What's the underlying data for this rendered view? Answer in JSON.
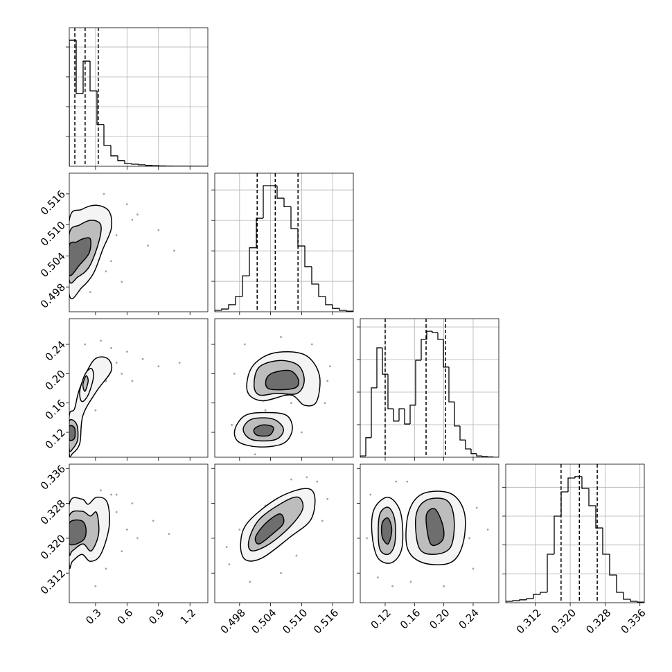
{
  "chart_data": {
    "type": "corner",
    "axes": [
      {
        "lim": [
          0.05,
          1.37
        ],
        "ticks": [
          0.3,
          0.6,
          0.9,
          1.2
        ]
      },
      {
        "lim": [
          0.4932,
          0.52
        ],
        "ticks": [
          0.498,
          0.504,
          {
            "value": 0.51,
            "label": "0.510"
          },
          0.516
        ]
      },
      {
        "lim": [
          0.086,
          0.275
        ],
        "ticks": [
          0.12,
          0.16,
          {
            "value": 0.2,
            "label": "0.20"
          },
          0.24
        ]
      },
      {
        "lim": [
          0.3052,
          0.337
        ],
        "ticks": [
          0.312,
          {
            "value": 0.32,
            "label": "0.320"
          },
          0.328,
          0.336
        ]
      }
    ],
    "grid": true,
    "histograms": [
      {
        "bins": [
          0.05,
          0.116,
          0.182,
          0.248,
          0.314,
          0.38,
          0.446,
          0.512,
          0.578,
          0.644,
          0.71,
          0.776,
          0.842,
          0.908,
          0.974,
          1.04,
          1.106,
          1.172,
          1.238,
          1.304,
          1.37
        ],
        "counts": [
          4230,
          2440,
          3530,
          2530,
          1400,
          700,
          350,
          190,
          90,
          70,
          50,
          30,
          20,
          10,
          5,
          3,
          2,
          1,
          1,
          0
        ],
        "ylim": [
          0,
          4650
        ],
        "yticks": [
          1000,
          2000,
          3000,
          4000
        ],
        "quantiles": [
          0.103,
          0.201,
          0.326
        ]
      },
      {
        "bins": [
          0.4932,
          0.49454,
          0.49588,
          0.49722,
          0.49856,
          0.4999,
          0.50124,
          0.50258,
          0.50392,
          0.50526,
          0.5066,
          0.50794,
          0.50928,
          0.51062,
          0.51196,
          0.5133,
          0.51464,
          0.51598,
          0.51732,
          0.51866,
          0.52
        ],
        "counts": [
          45,
          90,
          230,
          500,
          1180,
          2100,
          3070,
          4140,
          4140,
          3730,
          3450,
          2730,
          2160,
          1480,
          910,
          500,
          230,
          110,
          45,
          20
        ],
        "ylim": [
          0,
          4550
        ],
        "yticks": [
          1000,
          2000,
          3000,
          4000
        ],
        "quantiles": [
          0.5014,
          0.5049,
          0.5093
        ]
      },
      {
        "bins": [
          0.086,
          0.09356,
          0.10112,
          0.10868,
          0.11624,
          0.1238,
          0.13136,
          0.13892,
          0.14648,
          0.15404,
          0.1616,
          0.16916,
          0.17672,
          0.18428,
          0.19184,
          0.1994,
          0.20696,
          0.21452,
          0.22208,
          0.22964,
          0.2372,
          0.24476,
          0.25232,
          0.25988,
          0.26744,
          0.275
        ],
        "counts": [
          40,
          600,
          2130,
          3360,
          2550,
          1490,
          1110,
          1490,
          1020,
          1600,
          2980,
          3620,
          3870,
          3830,
          3620,
          2770,
          1700,
          960,
          530,
          255,
          110,
          40,
          20,
          10,
          0
        ],
        "ylim": [
          0,
          4255
        ],
        "yticks": [
          1000,
          2000,
          3000,
          4000
        ],
        "quantiles": [
          0.12,
          0.1758,
          0.2022
        ]
      },
      {
        "bins": [
          0.3052,
          0.30679,
          0.30838,
          0.30997,
          0.31156,
          0.31315,
          0.31474,
          0.31633,
          0.31792,
          0.31951,
          0.3211,
          0.32269,
          0.32428,
          0.32587,
          0.32746,
          0.32905,
          0.33064,
          0.33223,
          0.33382,
          0.33541,
          0.337
        ],
        "counts": [
          50,
          70,
          100,
          140,
          290,
          360,
          1680,
          3000,
          3840,
          4320,
          4370,
          3960,
          3360,
          2590,
          1680,
          960,
          360,
          120,
          50,
          20
        ],
        "ylim": [
          0,
          4800
        ],
        "yticks": [
          1000,
          2000,
          3000,
          4000
        ],
        "quantiles": [
          0.3179,
          0.3221,
          0.3262
        ]
      }
    ],
    "pairs": [
      {
        "points": {
          "x": [
            0.5,
            0.65,
            0.8,
            0.45,
            0.9,
            0.55,
            0.7,
            1.05,
            0.38,
            0.6,
            0.25,
            0.4
          ],
          "y": [
            0.508,
            0.511,
            0.506,
            0.503,
            0.509,
            0.499,
            0.512,
            0.505,
            0.516,
            0.514,
            0.497,
            0.501
          ]
        },
        "contours": [
          {
            "x": [
              0.05,
              0.17,
              0.31,
              0.43,
              0.45,
              0.37,
              0.28,
              0.17,
              0.05
            ],
            "y": [
              0.5109,
              0.513,
              0.5138,
              0.5126,
              0.5093,
              0.5053,
              0.5006,
              0.4979,
              0.4965
            ]
          },
          {
            "x": [
              0.05,
              0.15,
              0.26,
              0.35,
              0.33,
              0.24,
              0.13,
              0.05
            ],
            "y": [
              0.5083,
              0.51,
              0.5109,
              0.51,
              0.5066,
              0.5019,
              0.4999,
              0.4993
            ]
          },
          {
            "x": [
              0.05,
              0.12,
              0.18,
              0.25,
              0.24,
              0.15,
              0.05
            ],
            "y": [
              0.506,
              0.5067,
              0.5073,
              0.5073,
              0.5046,
              0.5023,
              0.5003
            ]
          }
        ]
      },
      {
        "points": {
          "x": [
            0.5,
            0.6,
            0.75,
            0.9,
            0.45,
            0.55,
            0.35,
            0.65,
            1.1,
            0.4,
            0.2,
            0.3
          ],
          "y": [
            0.215,
            0.23,
            0.22,
            0.21,
            0.235,
            0.2,
            0.245,
            0.19,
            0.215,
            0.19,
            0.24,
            0.15
          ]
        },
        "contours": [
          {
            "x": [
              0.05,
              0.1,
              0.15,
              0.28,
              0.41,
              0.45,
              0.31,
              0.18,
              0.15,
              0.08,
              0.05
            ],
            "y": [
              0.143,
              0.152,
              0.18,
              0.218,
              0.221,
              0.204,
              0.176,
              0.143,
              0.105,
              0.091,
              0.091
            ]
          },
          {
            "x": [
              0.15,
              0.2,
              0.26,
              0.28,
              0.23,
              0.17
            ],
            "y": [
              0.176,
              0.199,
              0.207,
              0.195,
              0.171,
              0.162
            ]
          },
          {
            "x": [
              0.05,
              0.12,
              0.13,
              0.08,
              0.05
            ],
            "y": [
              0.135,
              0.131,
              0.11,
              0.097,
              0.097
            ]
          },
          {
            "x": [
              0.18,
              0.21,
              0.23,
              0.2
            ],
            "y": [
              0.185,
              0.197,
              0.19,
              0.176
            ]
          },
          {
            "x": [
              0.05,
              0.1,
              0.1,
              0.05
            ],
            "y": [
              0.128,
              0.126,
              0.112,
              0.11
            ]
          }
        ]
      },
      {
        "points": {
          "x": [
            0.497,
            0.515,
            0.5155,
            0.499,
            0.512,
            0.503,
            0.508,
            0.5145,
            0.4965,
            0.51,
            0.501,
            0.506
          ],
          "y": [
            0.2,
            0.19,
            0.21,
            0.24,
            0.24,
            0.15,
            0.16,
            0.16,
            0.13,
            0.12,
            0.09,
            0.25
          ]
        },
        "contours": [
          {
            "x": [
              0.4995,
              0.5004,
              0.5045,
              0.5105,
              0.5134,
              0.5129,
              0.5105,
              0.5078,
              0.5024
            ],
            "y": [
              0.176,
              0.209,
              0.228,
              0.226,
              0.199,
              0.162,
              0.157,
              0.171,
              0.163
            ]
          },
          {
            "x": [
              0.4971,
              0.4991,
              0.5031,
              0.5071,
              0.5082,
              0.5065,
              0.5018,
              0.4978
            ],
            "y": [
              0.124,
              0.143,
              0.147,
              0.143,
              0.124,
              0.105,
              0.1,
              0.107
            ]
          },
          {
            "x": [
              0.5008,
              0.5018,
              0.5058,
              0.5094,
              0.5105,
              0.5091,
              0.5051,
              0.5018
            ],
            "y": [
              0.185,
              0.209,
              0.218,
              0.211,
              0.19,
              0.173,
              0.173,
              0.171
            ]
          },
          {
            "x": [
              0.4987,
              0.5004,
              0.5045,
              0.5065,
              0.5049,
              0.5004
            ],
            "y": [
              0.124,
              0.138,
              0.138,
              0.124,
              0.11,
              0.11
            ]
          },
          {
            "x": [
              0.5031,
              0.5044,
              0.5078,
              0.5094,
              0.5085,
              0.5038
            ],
            "y": [
              0.191,
              0.201,
              0.204,
              0.191,
              0.18,
              0.179
            ]
          },
          {
            "x": [
              0.5008,
              0.5024,
              0.5045,
              0.5038,
              0.5014
            ],
            "y": [
              0.124,
              0.13,
              0.127,
              0.116,
              0.116
            ]
          }
        ]
      },
      {
        "points": {
          "x": [
            0.5,
            0.6,
            0.45,
            0.7,
            0.55,
            0.85,
            0.4,
            0.35,
            0.65,
            1.0,
            0.3,
            0.5
          ],
          "y": [
            0.326,
            0.322,
            0.33,
            0.32,
            0.317,
            0.324,
            0.313,
            0.331,
            0.328,
            0.321,
            0.309,
            0.33
          ]
        },
        "contours": [
          {
            "x": [
              0.05,
              0.17,
              0.23,
              0.31,
              0.41,
              0.43,
              0.35,
              0.25,
              0.17,
              0.08,
              0.05
            ],
            "y": [
              0.3278,
              0.329,
              0.3278,
              0.3294,
              0.3283,
              0.3227,
              0.3163,
              0.3147,
              0.3163,
              0.3147,
              0.3139
            ]
          },
          {
            "x": [
              0.05,
              0.17,
              0.25,
              0.31,
              0.33,
              0.26,
              0.18,
              0.08,
              0.05
            ],
            "y": [
              0.3251,
              0.3262,
              0.3251,
              0.3259,
              0.3211,
              0.3171,
              0.3187,
              0.3171,
              0.3166
            ]
          },
          {
            "x": [
              0.05,
              0.17,
              0.21,
              0.18,
              0.05
            ],
            "y": [
              0.3235,
              0.324,
              0.3219,
              0.3195,
              0.3187
            ]
          }
        ]
      },
      {
        "points": {
          "x": [
            0.496,
            0.5,
            0.498,
            0.513,
            0.515,
            0.511,
            0.506,
            0.509,
            0.503,
            0.4955,
            0.514,
            0.508
          ],
          "y": [
            0.314,
            0.31,
            0.322,
            0.333,
            0.329,
            0.334,
            0.312,
            0.316,
            0.3275,
            0.318,
            0.324,
            0.3335
          ]
        },
        "contours": [
          {
            "x": [
              0.4982,
              0.4995,
              0.5051,
              0.5105,
              0.5125,
              0.5118,
              0.5078,
              0.5024,
              0.4991
            ],
            "y": [
              0.3187,
              0.3235,
              0.329,
              0.3314,
              0.3298,
              0.3243,
              0.3203,
              0.3155,
              0.3151
            ]
          },
          {
            "x": [
              0.4998,
              0.5018,
              0.5065,
              0.5094,
              0.5102,
              0.5078,
              0.5038,
              0.5004
            ],
            "y": [
              0.3195,
              0.3243,
              0.3283,
              0.3294,
              0.3267,
              0.3227,
              0.3187,
              0.3171
            ]
          },
          {
            "x": [
              0.5011,
              0.5031,
              0.5058,
              0.5065,
              0.5045,
              0.5018
            ],
            "y": [
              0.3203,
              0.3235,
              0.3256,
              0.3235,
              0.3211,
              0.3187
            ]
          }
        ]
      },
      {
        "points": {
          "x": [
            0.095,
            0.1,
            0.135,
            0.155,
            0.235,
            0.245,
            0.24,
            0.15,
            0.11,
            0.2,
            0.26,
            0.13
          ],
          "y": [
            0.32,
            0.33,
            0.333,
            0.31,
            0.32,
            0.327,
            0.313,
            0.333,
            0.311,
            0.309,
            0.322,
            0.309
          ]
        },
        "contours": [
          {
            "x": [
              0.105,
              0.124,
              0.141,
              0.143,
              0.129,
              0.11,
              0.102
            ],
            "y": [
              0.3267,
              0.3294,
              0.3259,
              0.3179,
              0.3144,
              0.3155,
              0.3211
            ]
          },
          {
            "x": [
              0.152,
              0.171,
              0.209,
              0.228,
              0.226,
              0.209,
              0.171,
              0.15
            ],
            "y": [
              0.3259,
              0.3302,
              0.3303,
              0.3259,
              0.3187,
              0.3144,
              0.3144,
              0.3179
            ]
          },
          {
            "x": [
              0.112,
              0.124,
              0.133,
              0.133,
              0.124,
              0.112
            ],
            "y": [
              0.3251,
              0.3271,
              0.3243,
              0.3187,
              0.3163,
              0.3179
            ]
          },
          {
            "x": [
              0.162,
              0.176,
              0.204,
              0.214,
              0.209,
              0.185,
              0.166
            ],
            "y": [
              0.3251,
              0.3287,
              0.3287,
              0.3243,
              0.3179,
              0.3163,
              0.3179
            ]
          },
          {
            "x": [
              0.116,
              0.124,
              0.129,
              0.124,
              0.116
            ],
            "y": [
              0.3235,
              0.3246,
              0.3219,
              0.3187,
              0.3203
            ]
          },
          {
            "x": [
              0.176,
              0.188,
              0.199,
              0.198,
              0.182
            ],
            "y": [
              0.3251,
              0.3267,
              0.3227,
              0.3195,
              0.3187
            ]
          }
        ]
      }
    ]
  }
}
